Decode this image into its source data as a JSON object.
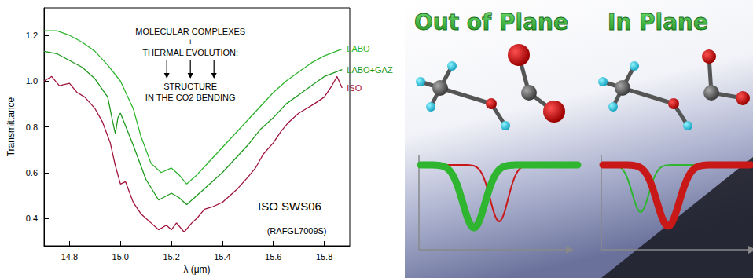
{
  "chart_data": {
    "type": "line",
    "x_label": "λ (μm)",
    "y_label": "Transmittance",
    "xlim": [
      14.7,
      15.9
    ],
    "xticks": [
      14.8,
      {
        "value": 15,
        "label": "15.0"
      },
      15.2,
      15.4,
      15.6,
      15.8
    ],
    "ylim": [
      0.28,
      1.32
    ],
    "yticks": [
      0.4,
      0.6,
      0.8,
      {
        "value": 1,
        "label": "1.0"
      },
      1.2
    ],
    "grid": false,
    "annotations": [
      "MOLECULAR COMPLEXES",
      "+",
      "THERMAL EVOLUTION:",
      "STRUCTURE",
      "IN THE CO2 BENDING",
      "ISO SWS06",
      "(RAFGL7009S)"
    ],
    "series": [
      {
        "name": "LABO",
        "color": "#2fb52f",
        "line_style": "solid",
        "marker": "none",
        "x": [
          14.7,
          14.75,
          14.8,
          14.85,
          14.9,
          14.95,
          15.0,
          15.05,
          15.08,
          15.12,
          15.16,
          15.2,
          15.23,
          15.26,
          15.3,
          15.35,
          15.4,
          15.45,
          15.5,
          15.55,
          15.6,
          15.65,
          15.7,
          15.75,
          15.8,
          15.87
        ],
        "values": [
          1.22,
          1.22,
          1.2,
          1.17,
          1.13,
          1.07,
          1.0,
          0.88,
          0.76,
          0.64,
          0.6,
          0.62,
          0.59,
          0.55,
          0.59,
          0.65,
          0.71,
          0.77,
          0.83,
          0.89,
          0.95,
          1.0,
          1.04,
          1.08,
          1.11,
          1.14
        ]
      },
      {
        "name": "LABO+GAZ",
        "color": "#1e9a1e",
        "line_style": "solid",
        "marker": "none",
        "x": [
          14.7,
          14.75,
          14.8,
          14.85,
          14.9,
          14.95,
          14.97,
          14.98,
          14.99,
          15.0,
          15.05,
          15.1,
          15.15,
          15.2,
          15.23,
          15.26,
          15.3,
          15.35,
          15.4,
          15.45,
          15.5,
          15.55,
          15.6,
          15.65,
          15.7,
          15.75,
          15.8,
          15.87
        ],
        "values": [
          1.13,
          1.12,
          1.09,
          1.06,
          1.01,
          0.93,
          0.82,
          0.77,
          0.84,
          0.86,
          0.72,
          0.57,
          0.48,
          0.51,
          0.49,
          0.46,
          0.5,
          0.55,
          0.6,
          0.66,
          0.72,
          0.79,
          0.84,
          0.9,
          0.94,
          0.98,
          1.02,
          1.05
        ]
      },
      {
        "name": "ISO",
        "color": "#a0143c",
        "line_style": "solid",
        "marker": "none",
        "x": [
          14.7,
          14.73,
          14.76,
          14.8,
          14.83,
          14.86,
          14.9,
          14.93,
          14.96,
          14.98,
          15.0,
          15.02,
          15.05,
          15.08,
          15.1,
          15.12,
          15.15,
          15.18,
          15.2,
          15.22,
          15.25,
          15.28,
          15.3,
          15.33,
          15.36,
          15.4,
          15.43,
          15.46,
          15.5,
          15.53,
          15.56,
          15.6,
          15.63,
          15.66,
          15.7,
          15.73,
          15.76,
          15.8,
          15.83,
          15.85,
          15.87
        ],
        "values": [
          1.0,
          1.02,
          0.98,
          0.99,
          0.95,
          0.93,
          0.88,
          0.82,
          0.73,
          0.63,
          0.55,
          0.56,
          0.47,
          0.42,
          0.4,
          0.38,
          0.35,
          0.37,
          0.35,
          0.38,
          0.34,
          0.38,
          0.4,
          0.44,
          0.45,
          0.47,
          0.5,
          0.53,
          0.58,
          0.62,
          0.68,
          0.73,
          0.78,
          0.82,
          0.86,
          0.88,
          0.9,
          0.93,
          0.98,
          1.02,
          0.97
        ]
      }
    ]
  },
  "diagram": {
    "panels": [
      {
        "title": "Out of Plane"
      },
      {
        "title": "In Plane"
      }
    ]
  }
}
